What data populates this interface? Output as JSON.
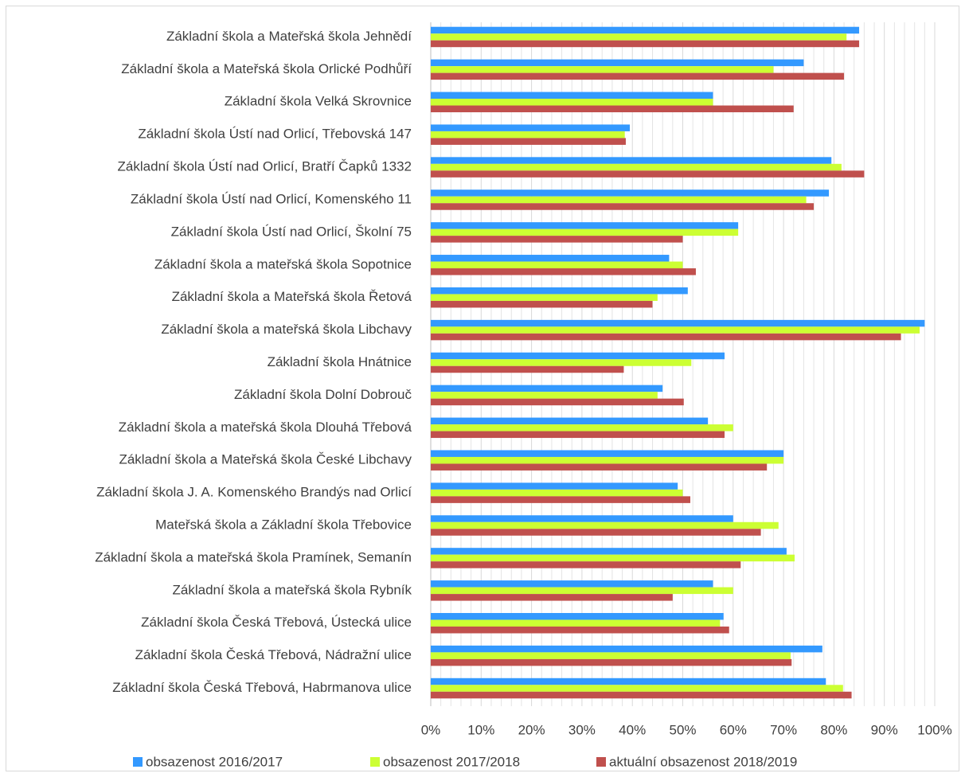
{
  "chart_data": {
    "type": "bar",
    "orientation": "horizontal",
    "categories": [
      "Základní škola a Mateřská škola Jehnědí",
      "Základní škola a Mateřská škola Orlické Podhůří",
      "Základní škola Velká Skrovnice",
      "Základní škola Ústí nad Orlicí, Třebovská 147",
      "Základní škola Ústí nad Orlicí, Bratří Čapků 1332",
      "Základní škola Ústí nad Orlicí, Komenského 11",
      "Základní škola Ústí nad Orlicí, Školní 75",
      "Základní škola a mateřská škola Sopotnice",
      "Základní škola a Mateřská škola Řetová",
      "Základní škola a mateřská škola Libchavy",
      "Základní škola Hnátnice",
      "Základní škola Dolní Dobrouč",
      "Základní škola a mateřská škola Dlouhá Třebová",
      "Základní škola a Mateřská škola České Libchavy",
      "Základní škola J. A. Komenského Brandýs nad Orlicí",
      "Mateřská škola a Základní škola Třebovice",
      "Základní škola a mateřská škola Pramínek, Semanín",
      "Základní škola a mateřská škola Rybník",
      "Základní škola Česká Třebová, Ústecká ulice",
      "Základní škola Česká Třebová, Nádražní ulice",
      "Základní škola Česká Třebová, Habrmanova ulice"
    ],
    "series": [
      {
        "name": "obsazenost 2016/2017",
        "color": "#3399ff",
        "values": [
          85,
          74,
          56,
          39.5,
          79.5,
          79,
          61,
          47.3,
          51,
          98,
          58.3,
          46,
          55,
          70,
          49,
          60,
          70.6,
          56,
          58.1,
          77.7,
          78.4
        ]
      },
      {
        "name": "obsazenost 2017/2018",
        "color": "#ccff33",
        "values": [
          82.5,
          68,
          56,
          38.5,
          81.5,
          74.5,
          61,
          50,
          45,
          97,
          51.7,
          45,
          60,
          70,
          50,
          69,
          72.2,
          60,
          57.4,
          71.4,
          81.8
        ]
      },
      {
        "name": "aktuální obsazenost 2018/2019",
        "color": "#c0504d",
        "values": [
          85,
          82,
          72,
          38.7,
          86,
          76,
          50,
          52.6,
          44,
          93.3,
          38.3,
          50.2,
          58.3,
          66.7,
          51.5,
          65.5,
          61.5,
          48,
          59.2,
          71.6,
          83.5
        ]
      }
    ],
    "xlim": [
      0,
      100
    ],
    "xticks": [
      {
        "value": 0,
        "label": "0%"
      },
      {
        "value": 10,
        "label": "10%"
      },
      {
        "value": 20,
        "label": "20%"
      },
      {
        "value": 30,
        "label": "30%"
      },
      {
        "value": 40,
        "label": "40%"
      },
      {
        "value": 50,
        "label": "50%"
      },
      {
        "value": 60,
        "label": "60%"
      },
      {
        "value": 70,
        "label": "70%"
      },
      {
        "value": 80,
        "label": "80%"
      },
      {
        "value": 90,
        "label": "90%"
      },
      {
        "value": 100,
        "label": "100%"
      }
    ],
    "xminorticks": [
      2,
      4,
      6,
      8,
      12,
      14,
      16,
      18,
      22,
      24,
      26,
      28,
      32,
      34,
      36,
      38,
      42,
      44,
      46,
      48,
      52,
      54,
      56,
      58,
      62,
      64,
      66,
      68,
      72,
      74,
      76,
      78,
      82,
      84,
      86,
      88,
      92,
      94,
      96,
      98
    ],
    "grid": true,
    "legend": "bottom"
  }
}
